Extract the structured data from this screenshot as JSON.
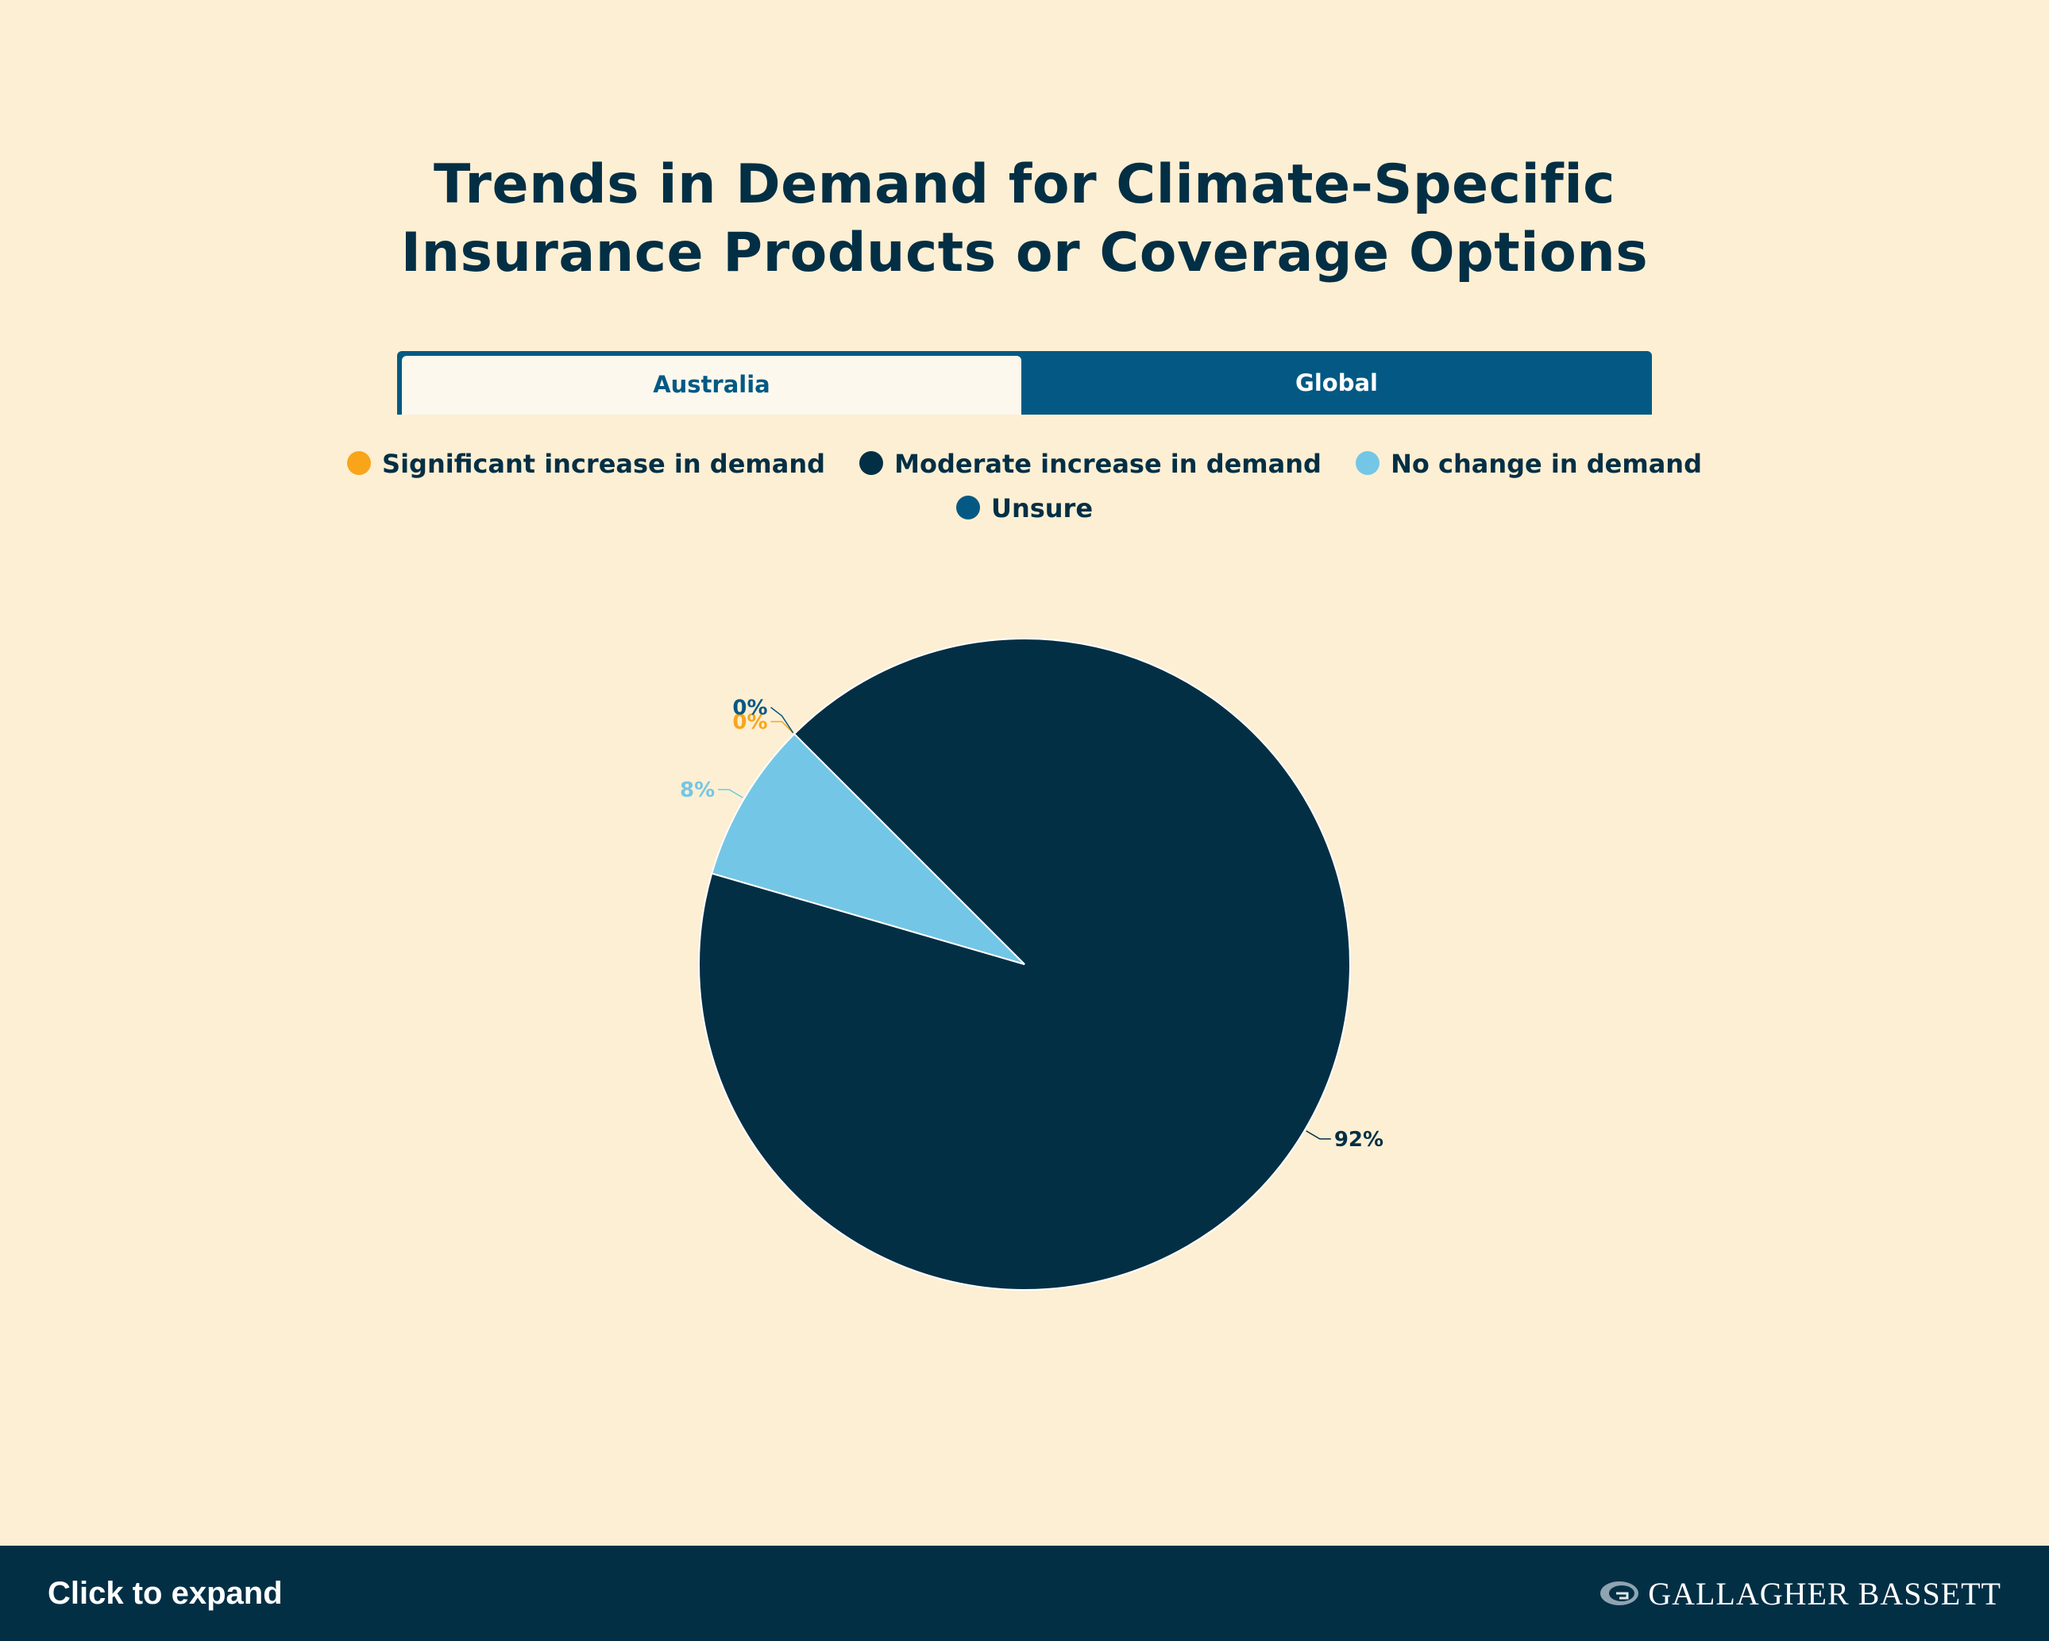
{
  "title": {
    "line1": "Trends in Demand for Climate-Specific",
    "line2": "Insurance Products or Coverage Options"
  },
  "tabs": [
    {
      "label": "Australia",
      "active": true
    },
    {
      "label": "Global",
      "active": false
    }
  ],
  "colors": {
    "background": "#fdefd3",
    "navy": "#032f45",
    "blue": "#035984",
    "orange": "#f9a51a",
    "light_blue": "#74c6e6",
    "tab_active_bg": "#fdf8ee"
  },
  "chart_data": {
    "type": "pie",
    "legend_position": "top",
    "series": [
      {
        "name": "Significant increase in demand",
        "value": 0,
        "label": "0%",
        "color": "#f9a51a"
      },
      {
        "name": "Moderate increase in demand",
        "value": 92,
        "label": "92%",
        "color": "#032f45"
      },
      {
        "name": "No change in demand",
        "value": 8,
        "label": "8%",
        "color": "#74c6e6"
      },
      {
        "name": "Unsure",
        "value": 0,
        "label": "0%",
        "color": "#035984"
      }
    ]
  },
  "footer": {
    "expand_label": "Click to expand",
    "brand": "GALLAGHER BASSETT"
  }
}
